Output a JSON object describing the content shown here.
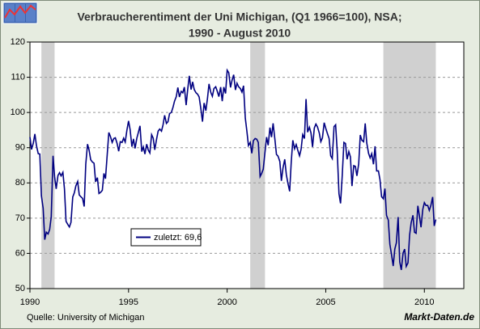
{
  "chart_data": {
    "type": "line",
    "title_lines": [
      "Verbraucherentiment der Uni Michigan, (Q1 1966=100), NSA;",
      "1990 - August 2010"
    ],
    "source": "Quelle: University of Michigan",
    "brand": "Markt-Daten.de",
    "xlim": [
      1990,
      2012
    ],
    "xticks": [
      1990,
      1995,
      2000,
      2005,
      2010
    ],
    "ylim": [
      50,
      120
    ],
    "yticks": [
      50,
      60,
      70,
      80,
      90,
      100,
      110,
      120
    ],
    "grid": true,
    "legend": "lower left",
    "shaded_regions": [
      [
        1990.58,
        1991.25
      ],
      [
        2001.17,
        2001.92
      ],
      [
        2007.92,
        2010.58
      ]
    ],
    "shade_color": "#d0d0d0",
    "x": [
      1990,
      1990.08,
      1990.17,
      1990.25,
      1990.33,
      1990.42,
      1990.5,
      1990.58,
      1990.67,
      1990.75,
      1990.83,
      1990.92,
      1991,
      1991.08,
      1991.17,
      1991.25,
      1991.33,
      1991.42,
      1991.5,
      1991.58,
      1991.67,
      1991.75,
      1991.83,
      1991.92,
      1992,
      1992.08,
      1992.17,
      1992.25,
      1992.33,
      1992.42,
      1992.5,
      1992.58,
      1992.67,
      1992.75,
      1992.83,
      1992.92,
      1993,
      1993.08,
      1993.17,
      1993.25,
      1993.33,
      1993.42,
      1993.5,
      1993.58,
      1993.67,
      1993.75,
      1993.83,
      1993.92,
      1994,
      1994.08,
      1994.17,
      1994.25,
      1994.33,
      1994.42,
      1994.5,
      1994.58,
      1994.67,
      1994.75,
      1994.83,
      1994.92,
      1995,
      1995.08,
      1995.17,
      1995.25,
      1995.33,
      1995.42,
      1995.5,
      1995.58,
      1995.67,
      1995.75,
      1995.83,
      1995.92,
      1996,
      1996.08,
      1996.17,
      1996.25,
      1996.33,
      1996.42,
      1996.5,
      1996.58,
      1996.67,
      1996.75,
      1996.83,
      1996.92,
      1997,
      1997.08,
      1997.17,
      1997.25,
      1997.33,
      1997.42,
      1997.5,
      1997.58,
      1997.67,
      1997.75,
      1997.83,
      1997.92,
      1998,
      1998.08,
      1998.17,
      1998.25,
      1998.33,
      1998.42,
      1998.5,
      1998.58,
      1998.67,
      1998.75,
      1998.83,
      1998.92,
      1999,
      1999.08,
      1999.17,
      1999.25,
      1999.33,
      1999.42,
      1999.5,
      1999.58,
      1999.67,
      1999.75,
      1999.83,
      1999.92,
      2000,
      2000.08,
      2000.17,
      2000.25,
      2000.33,
      2000.42,
      2000.5,
      2000.58,
      2000.67,
      2000.75,
      2000.83,
      2000.92,
      2001,
      2001.08,
      2001.17,
      2001.25,
      2001.33,
      2001.42,
      2001.5,
      2001.58,
      2001.67,
      2001.75,
      2001.83,
      2001.92,
      2002,
      2002.08,
      2002.17,
      2002.25,
      2002.33,
      2002.42,
      2002.5,
      2002.58,
      2002.67,
      2002.75,
      2002.83,
      2002.92,
      2003,
      2003.08,
      2003.17,
      2003.25,
      2003.33,
      2003.42,
      2003.5,
      2003.58,
      2003.67,
      2003.75,
      2003.83,
      2003.92,
      2004,
      2004.08,
      2004.17,
      2004.25,
      2004.33,
      2004.42,
      2004.5,
      2004.58,
      2004.67,
      2004.75,
      2004.83,
      2004.92,
      2005,
      2005.08,
      2005.17,
      2005.25,
      2005.33,
      2005.42,
      2005.5,
      2005.58,
      2005.67,
      2005.75,
      2005.83,
      2005.92,
      2006,
      2006.08,
      2006.17,
      2006.25,
      2006.33,
      2006.42,
      2006.5,
      2006.58,
      2006.67,
      2006.75,
      2006.83,
      2006.92,
      2007,
      2007.08,
      2007.17,
      2007.25,
      2007.33,
      2007.42,
      2007.5,
      2007.58,
      2007.67,
      2007.75,
      2007.83,
      2007.92,
      2008,
      2008.08,
      2008.17,
      2008.25,
      2008.33,
      2008.42,
      2008.5,
      2008.58,
      2008.67,
      2008.75,
      2008.83,
      2008.92,
      2009,
      2009.08,
      2009.17,
      2009.25,
      2009.33,
      2009.42,
      2009.5,
      2009.58,
      2009.67,
      2009.75,
      2009.83,
      2009.92,
      2010,
      2010.08,
      2010.17,
      2010.25,
      2010.33,
      2010.42,
      2010.5,
      2010.58
    ],
    "series": [
      {
        "name": "zuletzt: 69,6",
        "color": "#000080",
        "values": [
          93.0,
          89.5,
          91.3,
          93.9,
          90.6,
          88.3,
          88.2,
          76.4,
          72.8,
          63.9,
          66.0,
          65.5,
          66.8,
          70.4,
          87.7,
          81.8,
          78.3,
          82.1,
          82.9,
          82.0,
          83.0,
          78.3,
          69.1,
          68.2,
          67.5,
          68.8,
          76.0,
          77.2,
          79.2,
          80.4,
          76.6,
          76.1,
          75.6,
          73.3,
          85.3,
          91.0,
          89.3,
          86.6,
          85.9,
          85.6,
          80.3,
          81.5,
          77.0,
          77.3,
          77.9,
          82.7,
          81.2,
          88.2,
          94.3,
          93.2,
          91.5,
          92.6,
          92.8,
          91.2,
          89.0,
          91.7,
          91.5,
          92.7,
          91.6,
          95.1,
          97.6,
          95.1,
          90.3,
          92.5,
          89.8,
          92.7,
          94.4,
          96.2,
          88.9,
          90.2,
          88.2,
          91.0,
          89.3,
          88.5,
          93.7,
          92.7,
          89.4,
          92.4,
          94.7,
          95.3,
          94.7,
          96.5,
          99.2,
          96.9,
          97.4,
          99.7,
          100.0,
          101.4,
          103.2,
          104.5,
          107.1,
          104.4,
          106.0,
          105.6,
          107.2,
          102.1,
          106.6,
          110.4,
          106.5,
          108.7,
          106.5,
          105.6,
          105.2,
          104.4,
          100.9,
          97.4,
          102.7,
          100.5,
          103.9,
          108.1,
          105.7,
          104.6,
          106.8,
          107.3,
          106.0,
          104.5,
          107.2,
          103.2,
          107.2,
          105.4,
          112.0,
          111.3,
          107.1,
          109.2,
          110.7,
          106.4,
          108.3,
          107.3,
          106.8,
          105.8,
          107.6,
          98.4,
          94.7,
          90.6,
          91.5,
          88.4,
          92.0,
          92.6,
          92.4,
          91.5,
          81.8,
          82.7,
          83.9,
          88.8,
          93.0,
          90.7,
          95.7,
          93.0,
          96.9,
          92.4,
          88.1,
          87.6,
          86.1,
          80.6,
          84.2,
          86.7,
          82.4,
          79.9,
          77.6,
          86.0,
          92.1,
          89.7,
          90.9,
          89.3,
          87.7,
          89.6,
          93.7,
          92.6,
          103.8,
          94.4,
          95.8,
          94.2,
          90.2,
          95.6,
          96.7,
          95.9,
          94.2,
          91.7,
          92.8,
          97.1,
          95.5,
          94.1,
          92.6,
          87.7,
          86.9,
          96.0,
          96.5,
          89.1,
          76.9,
          74.2,
          81.6,
          91.5,
          91.2,
          86.7,
          88.9,
          87.4,
          79.1,
          84.9,
          84.7,
          82.0,
          85.4,
          93.6,
          92.1,
          91.7,
          96.9,
          91.3,
          88.4,
          87.1,
          88.3,
          85.3,
          90.4,
          83.4,
          83.4,
          80.9,
          76.1,
          75.5,
          78.4,
          70.8,
          69.5,
          62.6,
          59.8,
          56.4,
          61.2,
          63.0,
          70.3,
          57.6,
          55.3,
          60.1,
          61.2,
          56.3,
          57.3,
          65.1,
          68.7,
          70.8,
          66.0,
          65.7,
          73.5,
          70.6,
          67.4,
          72.5,
          74.4,
          73.6,
          73.6,
          72.2,
          73.6,
          76.0,
          67.8,
          69.6
        ]
      }
    ]
  }
}
